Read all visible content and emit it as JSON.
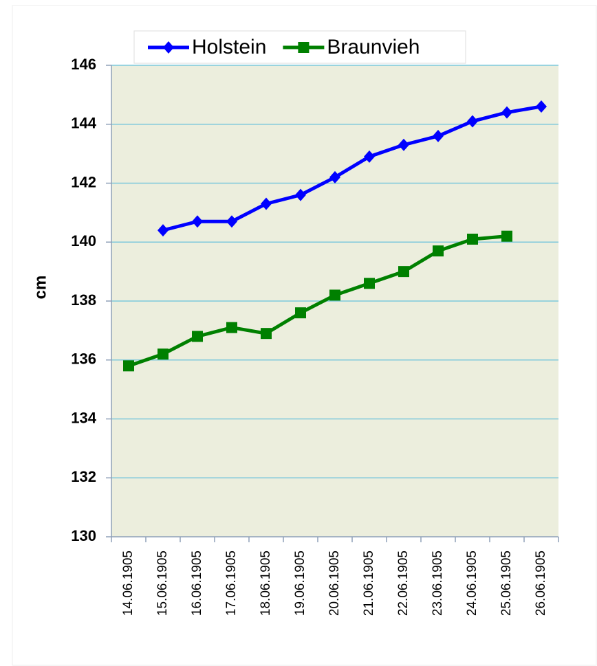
{
  "chart_data": {
    "type": "line",
    "y_label": "cm",
    "categories": [
      "14.06.1905",
      "15.06.1905",
      "16.06.1905",
      "17.06.1905",
      "18.06.1905",
      "19.06.1905",
      "20.06.1905",
      "21.06.1905",
      "22.06.1905",
      "23.06.1905",
      "24.06.1905",
      "25.06.1905",
      "26.06.1905"
    ],
    "series": [
      {
        "name": "Holstein",
        "color": "#0000ff",
        "marker": "diamond",
        "values": [
          null,
          140.4,
          140.7,
          140.7,
          141.3,
          141.6,
          142.2,
          142.9,
          143.3,
          143.6,
          144.1,
          144.4,
          144.6
        ]
      },
      {
        "name": "Braunvieh",
        "color": "#008000",
        "marker": "square",
        "values": [
          135.8,
          136.2,
          136.8,
          137.1,
          136.9,
          137.6,
          138.2,
          138.6,
          139.0,
          139.7,
          140.1,
          140.2,
          null
        ]
      }
    ],
    "ylim": [
      130,
      146
    ],
    "yticks": [
      130,
      132,
      134,
      136,
      138,
      140,
      142,
      144,
      146
    ],
    "grid": true,
    "legend": "top"
  }
}
